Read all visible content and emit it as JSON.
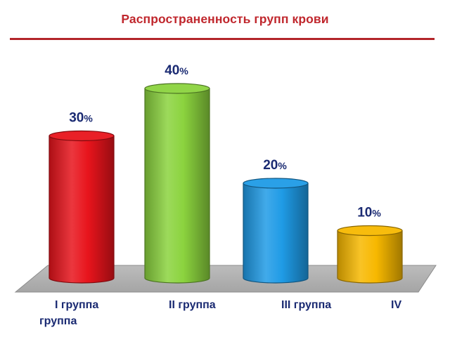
{
  "title": "Распространенность групп крови",
  "chart_data": {
    "type": "bar",
    "title": "Распространенность групп крови",
    "xlabel": "",
    "ylabel": "",
    "unit": "%",
    "ylim": [
      0,
      40
    ],
    "grid": false,
    "legend": "none",
    "categories": [
      "I группа",
      "II группа",
      "III группа",
      "IV группа"
    ],
    "values": [
      30,
      40,
      20,
      10
    ],
    "data_labels": [
      "30",
      "40",
      "20",
      "10"
    ],
    "colors": [
      "#e8141c",
      "#8bd33e",
      "#1f9be6",
      "#f7b800"
    ]
  }
}
